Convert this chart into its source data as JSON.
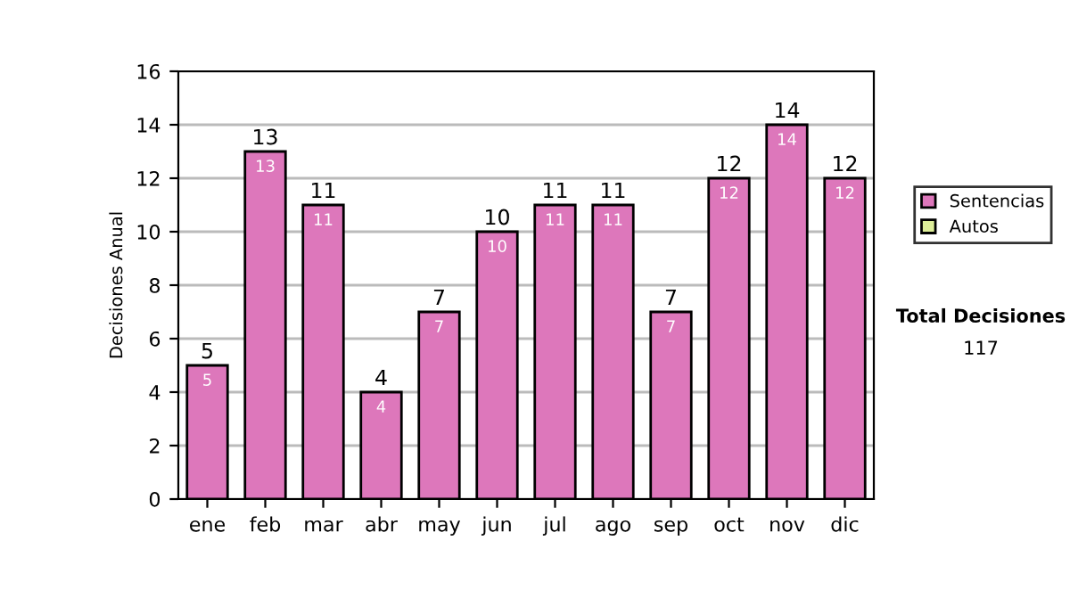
{
  "chart_data": {
    "type": "bar",
    "ylabel": "Decisiones Anual",
    "categories": [
      "ene",
      "feb",
      "mar",
      "abr",
      "may",
      "jun",
      "jul",
      "ago",
      "sep",
      "oct",
      "nov",
      "dic"
    ],
    "stacked": true,
    "series": [
      {
        "name": "Sentencias",
        "color": "#dd77bb",
        "values": [
          5,
          13,
          11,
          4,
          7,
          10,
          11,
          11,
          7,
          12,
          14,
          12
        ],
        "value_labels": [
          "5",
          "13",
          "11",
          "4",
          "7",
          "10",
          "11",
          "11",
          "7",
          "12",
          "14",
          "12"
        ]
      },
      {
        "name": "Autos",
        "color": "#ddee99",
        "values": [
          null,
          null,
          null,
          null,
          null,
          null,
          null,
          null,
          null,
          null,
          null,
          null
        ]
      }
    ],
    "totals": [
      "5",
      "13",
      "11",
      "4",
      "7",
      "10",
      "11",
      "11",
      "7",
      "12",
      "14",
      "12"
    ],
    "ylim": [
      0,
      16
    ],
    "yticks": [
      0,
      2,
      4,
      6,
      8,
      10,
      12,
      14,
      16
    ],
    "grid": "y",
    "legend": "right",
    "annotations": [
      "Total Decisiones",
      "117"
    ]
  }
}
